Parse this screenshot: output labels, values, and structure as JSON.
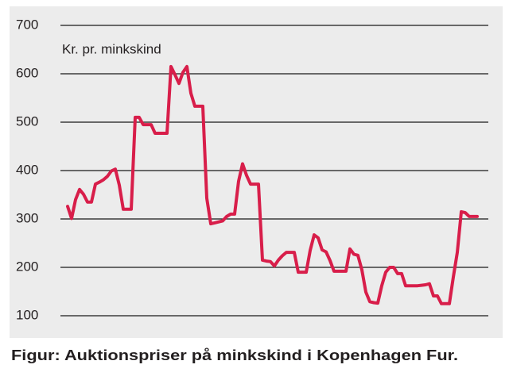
{
  "chart_data": {
    "type": "line",
    "annotation": "Kr. pr. minkskind",
    "caption": "Figur: Auktionspriser på minkskind i Kopenhagen Fur.",
    "series": [
      {
        "color": "#d81e4a",
        "values": [
          326,
          301,
          340,
          361,
          351,
          335,
          335,
          372,
          376,
          381,
          388,
          399,
          403,
          370,
          320,
          320,
          320,
          510,
          510,
          495,
          495,
          495,
          477,
          477,
          477,
          477,
          615,
          598,
          580,
          603,
          615,
          560,
          533,
          533,
          533,
          343,
          290,
          292,
          294,
          296,
          305,
          310,
          310,
          378,
          414,
          390,
          372,
          372,
          372,
          215,
          213,
          212,
          203,
          215,
          224,
          231,
          231,
          231,
          190,
          190,
          190,
          235,
          267,
          261,
          236,
          232,
          214,
          192,
          192,
          192,
          192,
          238,
          227,
          225,
          195,
          149,
          129,
          127,
          126,
          162,
          190,
          200,
          200,
          187,
          187,
          162,
          162,
          162,
          162,
          163,
          164,
          166,
          141,
          141,
          125,
          125,
          125,
          180,
          231,
          315,
          313,
          305,
          305,
          305
        ]
      }
    ],
    "ylim": [
      100,
      700
    ],
    "yticks": [
      100,
      200,
      300,
      400,
      500,
      600,
      700
    ],
    "grid": true
  }
}
